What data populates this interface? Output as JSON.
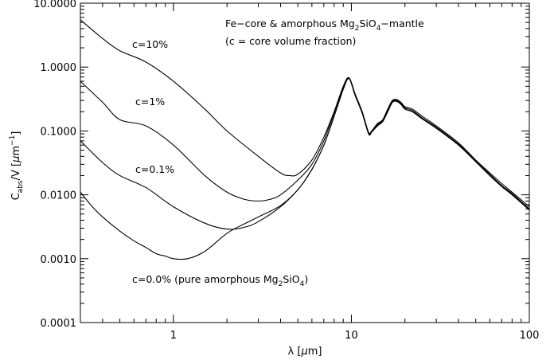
{
  "chart_data": {
    "type": "line",
    "title": "",
    "xlabel": "λ [μm]",
    "ylabel": "C_abs/V [μm^-1]",
    "x_scale": "log",
    "y_scale": "log",
    "xlim": [
      0.3,
      100
    ],
    "ylim": [
      0.0001,
      10
    ],
    "grid": false,
    "x_ticks": [
      {
        "value": 1,
        "label": "1"
      },
      {
        "value": 10,
        "label": "10"
      },
      {
        "value": 100,
        "label": "100"
      }
    ],
    "y_ticks": [
      {
        "value": 0.0001,
        "label": "0.0001"
      },
      {
        "value": 0.001,
        "label": "0.0010"
      },
      {
        "value": 0.01,
        "label": "0.0100"
      },
      {
        "value": 0.1,
        "label": "0.1000"
      },
      {
        "value": 1,
        "label": "1.0000"
      },
      {
        "value": 10,
        "label": "10.0000"
      }
    ],
    "ylabel_parts": {
      "main": "C",
      "sub": "abs",
      "mid": "/V [",
      "mu": "μ",
      "unit": "m",
      "sup": "−1",
      "end": "]"
    },
    "xlabel_parts": {
      "main": "λ [",
      "mu": "μ",
      "unit": "m]"
    },
    "annotations": {
      "title_line1": {
        "pre": "Fe−core & amorphous Mg",
        "s1": "2",
        "mid": "SiO",
        "s2": "4",
        "post": "−mantle"
      },
      "title_line2": "(c = core volume fraction)",
      "c10": "c=10%",
      "c1": "c=1%",
      "c01": "c=0.1%",
      "c0": {
        "pre": "c=0.0% (pure amorphous Mg",
        "s1": "2",
        "mid": "SiO",
        "s2": "4",
        "post": ")"
      }
    },
    "series": [
      {
        "name": "c=10%",
        "x": [
          0.3,
          0.4,
          0.5,
          0.7,
          1.0,
          1.5,
          2,
          3,
          4,
          4.5,
          5,
          6,
          7,
          8,
          9,
          9.7,
          10.5,
          11.5,
          12.5,
          13,
          14,
          15,
          16,
          17,
          18,
          19,
          20,
          22,
          25,
          30,
          40,
          50,
          60,
          70,
          80,
          100
        ],
        "y": [
          5.5,
          2.8,
          1.8,
          1.2,
          0.6,
          0.22,
          0.1,
          0.04,
          0.022,
          0.02,
          0.021,
          0.035,
          0.08,
          0.2,
          0.5,
          0.68,
          0.38,
          0.2,
          0.095,
          0.1,
          0.13,
          0.15,
          0.22,
          0.3,
          0.31,
          0.28,
          0.24,
          0.22,
          0.17,
          0.12,
          0.065,
          0.035,
          0.022,
          0.015,
          0.011,
          0.0065
        ]
      },
      {
        "name": "c=1%",
        "x": [
          0.3,
          0.4,
          0.5,
          0.7,
          1.0,
          1.5,
          2,
          2.5,
          3,
          3.5,
          4,
          5,
          6,
          7,
          8,
          9,
          9.7,
          10.5,
          11.5,
          12.5,
          13,
          14,
          15,
          16,
          17,
          18,
          19,
          20,
          22,
          25,
          30,
          40,
          50,
          60,
          70,
          80,
          100
        ],
        "y": [
          0.6,
          0.28,
          0.15,
          0.12,
          0.06,
          0.02,
          0.011,
          0.0085,
          0.008,
          0.0085,
          0.01,
          0.017,
          0.03,
          0.07,
          0.19,
          0.48,
          0.67,
          0.37,
          0.2,
          0.092,
          0.098,
          0.125,
          0.145,
          0.21,
          0.29,
          0.3,
          0.27,
          0.23,
          0.21,
          0.16,
          0.115,
          0.062,
          0.034,
          0.021,
          0.014,
          0.0105,
          0.006
        ]
      },
      {
        "name": "c=0.1%",
        "x": [
          0.3,
          0.4,
          0.5,
          0.7,
          1.0,
          1.5,
          2,
          2.5,
          3,
          4,
          5,
          6,
          7,
          8,
          9,
          9.7,
          10.5,
          11.5,
          12.5,
          13,
          14,
          15,
          16,
          17,
          18,
          19,
          20,
          22,
          25,
          30,
          40,
          50,
          60,
          70,
          80,
          100
        ],
        "y": [
          0.07,
          0.032,
          0.02,
          0.013,
          0.0065,
          0.0036,
          0.0029,
          0.0031,
          0.0038,
          0.0065,
          0.012,
          0.025,
          0.06,
          0.17,
          0.45,
          0.66,
          0.36,
          0.19,
          0.09,
          0.096,
          0.12,
          0.14,
          0.2,
          0.28,
          0.29,
          0.26,
          0.22,
          0.2,
          0.155,
          0.11,
          0.06,
          0.033,
          0.02,
          0.0135,
          0.01,
          0.0058
        ]
      },
      {
        "name": "c=0.0% (pure amorphous Mg2SiO4)",
        "x": [
          0.3,
          0.35,
          0.4,
          0.5,
          0.6,
          0.7,
          0.8,
          0.9,
          1.0,
          1.2,
          1.5,
          2,
          2.5,
          3,
          4,
          5,
          6,
          7,
          8,
          9,
          9.7,
          10.5,
          11.5,
          12.5,
          13,
          14,
          15,
          16,
          17,
          18,
          19,
          20,
          22,
          25,
          30,
          40,
          50,
          60,
          70,
          80,
          100
        ],
        "y": [
          0.011,
          0.0065,
          0.0045,
          0.0027,
          0.0019,
          0.0015,
          0.0012,
          0.0011,
          0.001,
          0.001,
          0.0013,
          0.0025,
          0.0035,
          0.0045,
          0.0068,
          0.012,
          0.025,
          0.06,
          0.17,
          0.45,
          0.66,
          0.36,
          0.19,
          0.09,
          0.096,
          0.12,
          0.14,
          0.2,
          0.28,
          0.29,
          0.26,
          0.22,
          0.2,
          0.155,
          0.11,
          0.06,
          0.033,
          0.02,
          0.0135,
          0.01,
          0.0058
        ]
      }
    ]
  }
}
